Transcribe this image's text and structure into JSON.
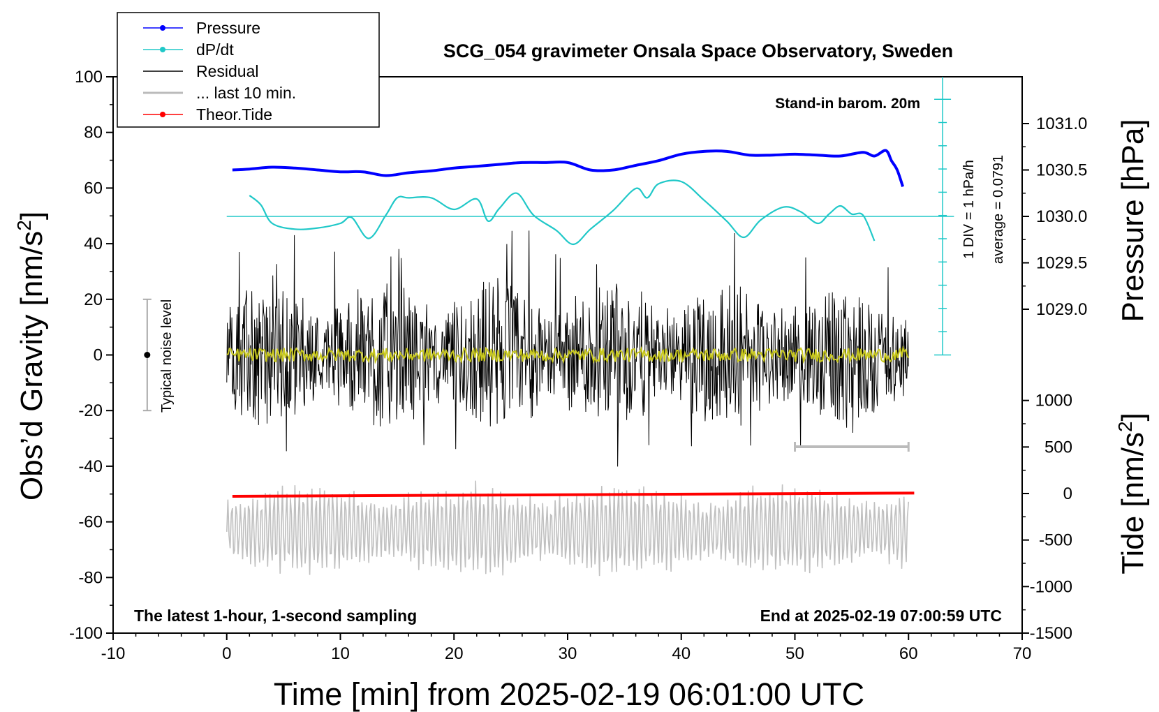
{
  "chart_data": {
    "type": "line",
    "title": "SCG_054 gravimeter Onsala Space Observatory, Sweden",
    "subtitle_left": "The latest 1-hour, 1-second sampling",
    "subtitle_right": "End at 2025-02-19 07:00:59 UTC",
    "barometer_note": "Stand-in barom. 20m",
    "xlabel": "Time [min] from 2025-02-19 06:01:00 UTC",
    "xlim": [
      -10,
      70
    ],
    "xticks": [
      "-10",
      "0",
      "10",
      "20",
      "30",
      "40",
      "50",
      "60",
      "70"
    ],
    "y_left": {
      "label_main": "Obs’d Gravity [nm/s",
      "label_sup": "2",
      "label_end": "]",
      "lim": [
        -100,
        100
      ],
      "ticks": [
        "-100",
        "-80",
        "-60",
        "-40",
        "-20",
        "0",
        "20",
        "40",
        "60",
        "80",
        "100"
      ]
    },
    "y_pressure": {
      "label": "Pressure [hPa]",
      "ticks": [
        "1029.0",
        "1029.5",
        "1030.0",
        "1030.5",
        "1031.0"
      ]
    },
    "y_tide": {
      "label_main": "Tide [nm/s",
      "label_sup": "2",
      "label_end": "]",
      "ticks": [
        "-1500",
        "-1000",
        "-500",
        "0",
        "500",
        "1000"
      ]
    },
    "dpdt_scale": {
      "div_label": "1 DIV = 1 hPa/h",
      "average_label": "average = 0.0791"
    },
    "noise_label": "Typical noise level",
    "legend": [
      {
        "label": "Pressure",
        "color": "#0000ff"
      },
      {
        "label": "dP/dt",
        "color": "#20c8c8"
      },
      {
        "label": "Residual",
        "color": "#000000"
      },
      {
        "label": "... last 10 min.",
        "color": "#bbbbbb"
      },
      {
        "label": "Theor.Tide",
        "color": "#ff0000"
      }
    ],
    "series": [
      {
        "name": "Pressure",
        "unit": "hPa",
        "x": [
          0.5,
          2,
          4,
          6,
          8,
          10,
          12,
          14,
          16,
          18,
          20,
          22,
          24,
          26,
          28,
          30,
          32,
          34,
          36,
          38,
          40,
          42,
          44,
          46,
          48,
          50,
          52,
          54,
          56,
          57,
          58,
          58.5,
          59,
          59.5
        ],
        "values": [
          1030.5,
          1030.51,
          1030.53,
          1030.52,
          1030.5,
          1030.48,
          1030.48,
          1030.44,
          1030.47,
          1030.49,
          1030.52,
          1030.54,
          1030.56,
          1030.58,
          1030.58,
          1030.58,
          1030.5,
          1030.5,
          1030.55,
          1030.6,
          1030.67,
          1030.7,
          1030.7,
          1030.66,
          1030.66,
          1030.67,
          1030.66,
          1030.65,
          1030.69,
          1030.65,
          1030.71,
          1030.6,
          1030.5,
          1030.32
        ]
      },
      {
        "name": "dP/dt",
        "unit": "hPa/h",
        "x": [
          2,
          3,
          4,
          6,
          8,
          10,
          11,
          12.5,
          14,
          15,
          16,
          18,
          20,
          22,
          23,
          24,
          25.5,
          27,
          29,
          30.5,
          32,
          34,
          36,
          37,
          38,
          40,
          42,
          44,
          45.5,
          47,
          49,
          50.5,
          52,
          53,
          54,
          55,
          56,
          57
        ],
        "values": [
          0.9,
          0.5,
          -0.3,
          -0.55,
          -0.5,
          -0.3,
          -0.05,
          -0.95,
          0.05,
          0.8,
          0.8,
          0.8,
          0.3,
          0.75,
          -0.2,
          0.35,
          1.0,
          0.05,
          -0.6,
          -1.2,
          -0.55,
          0.25,
          1.2,
          0.8,
          1.4,
          1.5,
          0.7,
          -0.2,
          -0.9,
          -0.15,
          0.4,
          0.2,
          -0.3,
          0.1,
          0.45,
          0.1,
          0.05,
          -1.05
        ]
      },
      {
        "name": "Residual",
        "unit": "nm/s2",
        "x_range": [
          0,
          60
        ],
        "noise_amplitude": 22,
        "sample_count": 1200
      },
      {
        "name": "... last 10 min.",
        "unit": "nm/s2",
        "x_range": [
          0,
          60
        ],
        "center": -63,
        "amplitude": 12
      },
      {
        "name": "Theor.Tide",
        "unit": "nm/s2",
        "x": [
          0.5,
          60.5
        ],
        "values": [
          -30,
          5
        ]
      },
      {
        "name": "Residual (smoothed)",
        "unit": "nm/s2",
        "x_range": [
          0,
          60
        ],
        "center": 0,
        "amplitude": 2.5
      }
    ],
    "scale_bar_minutes": [
      50,
      60
    ],
    "noise_range": [
      -20,
      20
    ],
    "grid": false,
    "legend_position": "top-left"
  }
}
